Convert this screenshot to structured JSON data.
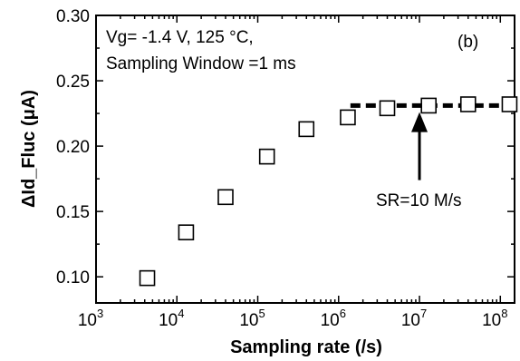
{
  "chart_data": {
    "type": "scatter",
    "xscale": "log",
    "xlim": [
      1000,
      150000000
    ],
    "ylim": [
      0.08,
      0.3
    ],
    "xticks": [
      1000,
      10000,
      100000,
      1000000,
      10000000,
      100000000
    ],
    "yticks": [
      0.1,
      0.15,
      0.2,
      0.25,
      0.3
    ],
    "xtick_labels": [
      {
        "base": "10",
        "exp": "3"
      },
      {
        "base": "10",
        "exp": "4"
      },
      {
        "base": "10",
        "exp": "5"
      },
      {
        "base": "10",
        "exp": "6"
      },
      {
        "base": "10",
        "exp": "7"
      },
      {
        "base": "10",
        "exp": "8"
      }
    ],
    "ytick_labels": [
      "0.10",
      "0.15",
      "0.20",
      "0.25",
      "0.30"
    ],
    "xlabel": "Sampling rate (/s)",
    "ylabel": "ΔId_Fluc (μA)",
    "series": [
      {
        "marker": "open-square",
        "x": [
          4300,
          13000,
          40000,
          130000,
          400000,
          1300000,
          4000000,
          13000000,
          40000000,
          130000000
        ],
        "y": [
          0.099,
          0.134,
          0.161,
          0.192,
          0.213,
          0.222,
          0.229,
          0.231,
          0.232,
          0.232
        ]
      }
    ],
    "saturation_line": {
      "style": "dashed",
      "y": 0.231,
      "x_start": 1400000,
      "x_end": 150000000
    },
    "annotations": {
      "condition_line1": "Vg= -1.4 V, 125 °C,",
      "condition_line2": "Sampling Window =1 ms",
      "panel_label": "(b)",
      "arrow_label": "SR=10 M/s",
      "arrow_x": 10000000,
      "arrow_tip_y": 0.226,
      "arrow_tail_y": 0.174
    },
    "grid": false,
    "legend": "none"
  }
}
